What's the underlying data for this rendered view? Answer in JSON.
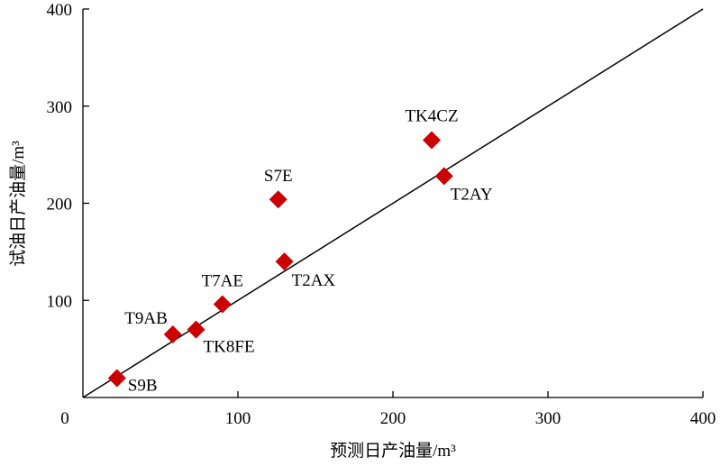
{
  "chart_data": {
    "type": "scatter",
    "xlabel": "预测日产油量/m³",
    "ylabel": "试油日产油量/m³",
    "xlim": [
      0,
      400
    ],
    "ylim": [
      0,
      400
    ],
    "x_ticks": [
      "0",
      "100",
      "200",
      "300",
      "400"
    ],
    "y_ticks": [
      "100",
      "200",
      "300",
      "400"
    ],
    "grid": false,
    "reference_line": {
      "from": [
        0,
        0
      ],
      "to": [
        400,
        400
      ]
    },
    "marker": {
      "shape": "diamond",
      "color": "#cc0000"
    },
    "points": [
      {
        "label": "S9B",
        "x": 22,
        "y": 20
      },
      {
        "label": "T9AB",
        "x": 58,
        "y": 65
      },
      {
        "label": "TK8FE",
        "x": 73,
        "y": 70
      },
      {
        "label": "T7AE",
        "x": 90,
        "y": 96
      },
      {
        "label": "T2AX",
        "x": 130,
        "y": 140
      },
      {
        "label": "S7E",
        "x": 126,
        "y": 204
      },
      {
        "label": "TK4CZ",
        "x": 225,
        "y": 265
      },
      {
        "label": "T2AY",
        "x": 233,
        "y": 228
      }
    ]
  }
}
